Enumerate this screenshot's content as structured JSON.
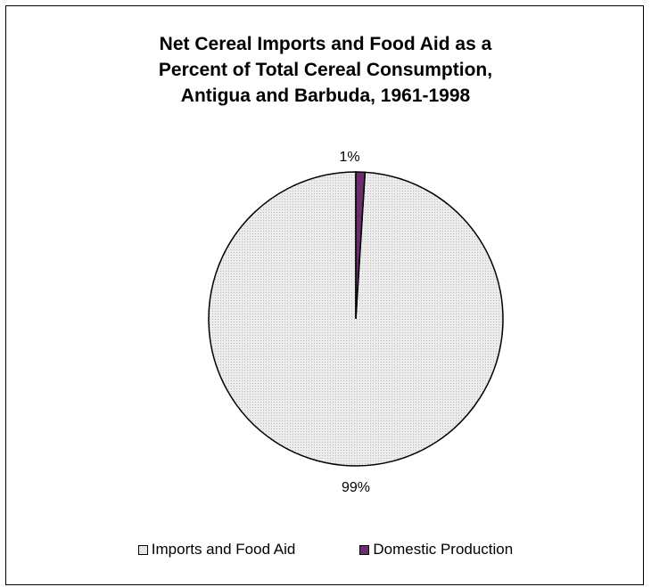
{
  "chart_data": {
    "type": "pie",
    "title": [
      "Net Cereal Imports and Food Aid as a",
      "Percent of Total Cereal Consumption,",
      "Antigua and Barbuda, 1961-1998"
    ],
    "slices": [
      {
        "name": "Imports and Food Aid",
        "value": 99,
        "label": "99%",
        "color": "#e6e6e6"
      },
      {
        "name": "Domestic Production",
        "value": 1,
        "label": "1%",
        "color": "#6b2d6b"
      }
    ],
    "legend": {
      "position": "bottom"
    }
  }
}
